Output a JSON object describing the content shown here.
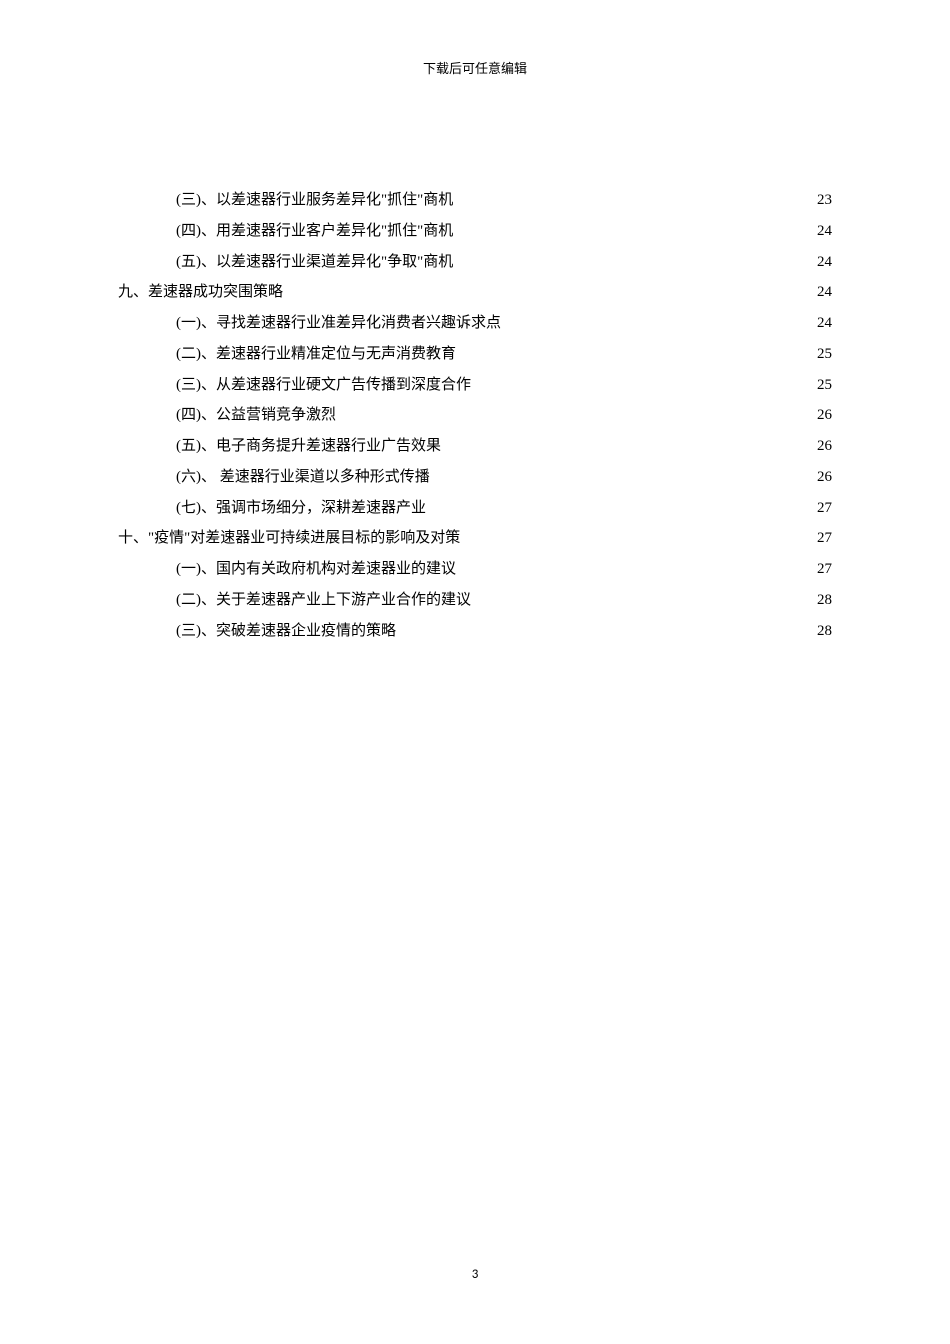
{
  "header_note": "下载后可任意编辑",
  "page_number": "3",
  "toc": [
    {
      "level": 2,
      "label": "(三)、以差速器行业服务差异化\"抓住\"商机",
      "page": "23"
    },
    {
      "level": 2,
      "label": "(四)、用差速器行业客户差异化\"抓住\"商机",
      "page": "24"
    },
    {
      "level": 2,
      "label": "(五)、以差速器行业渠道差异化\"争取\"商机",
      "page": "24"
    },
    {
      "level": 1,
      "label": "九、差速器成功突围策略",
      "page": "24"
    },
    {
      "level": 2,
      "label": "(一)、寻找差速器行业准差异化消费者兴趣诉求点",
      "page": "24"
    },
    {
      "level": 2,
      "label": "(二)、差速器行业精准定位与无声消费教育",
      "page": "25"
    },
    {
      "level": 2,
      "label": "(三)、从差速器行业硬文广告传播到深度合作",
      "page": "25"
    },
    {
      "level": 2,
      "label": "(四)、公益营销竞争激烈",
      "page": "26"
    },
    {
      "level": 2,
      "label": "(五)、电子商务提升差速器行业广告效果",
      "page": "26"
    },
    {
      "level": 2,
      "label": "(六)、 差速器行业渠道以多种形式传播",
      "page": "26"
    },
    {
      "level": 2,
      "label": "(七)、强调市场细分，深耕差速器产业",
      "page": "27"
    },
    {
      "level": 1,
      "label": "十、\"疫情\"对差速器业可持续进展目标的影响及对策",
      "page": "27"
    },
    {
      "level": 2,
      "label": "(一)、国内有关政府机构对差速器业的建议",
      "page": "27"
    },
    {
      "level": 2,
      "label": "(二)、关于差速器产业上下游产业合作的建议",
      "page": "28"
    },
    {
      "level": 2,
      "label": "(三)、突破差速器企业疫情的策略",
      "page": "28"
    }
  ]
}
